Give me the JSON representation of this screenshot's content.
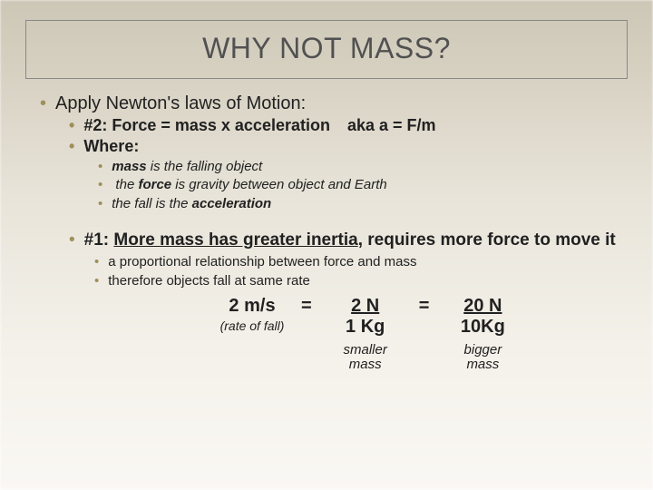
{
  "colors": {
    "bullet": "#9e8e5b",
    "title": "#515151",
    "border": "#888888",
    "text": "#212121",
    "bg_top": "#cdc7b7",
    "bg_bottom": "#faf8f4"
  },
  "fonts": {
    "family": "Arial",
    "title_size": 32,
    "lvl1_size": 20,
    "lvl2_size": 18,
    "lvl3_size": 15
  },
  "title": "WHY NOT MASS?",
  "lvl1_apply": "Apply Newton's laws of Motion:",
  "law2": "#2: Force = mass  x  acceleration ",
  "aka": "aka   a = F/m",
  "where": "Where:",
  "sub1_prefix": "mass",
  "sub1_rest": " is the falling object",
  "sub2_a": " the ",
  "sub2_b": "force",
  "sub2_c": " is gravity between object and Earth",
  "sub3_a": "the fall is the ",
  "sub3_b": "acceleration",
  "law1_a": "#1: ",
  "law1_b": "More mass has greater inertia",
  "law1_c": ", requires more force to move it",
  "prop": "a proportional relationship between force and mass",
  "therefore": "therefore objects fall at same rate",
  "eq": {
    "rate_top": "2 m/s",
    "rate_sub": "(rate of fall)",
    "eq": "=",
    "c1_top": "2 N",
    "c1_bot": "1 Kg",
    "c1_sub": "smaller\nmass",
    "eq2": "=",
    "c2_top": "20 N",
    "c2_bot": "10Kg",
    "c2_sub": "bigger\nmass"
  }
}
